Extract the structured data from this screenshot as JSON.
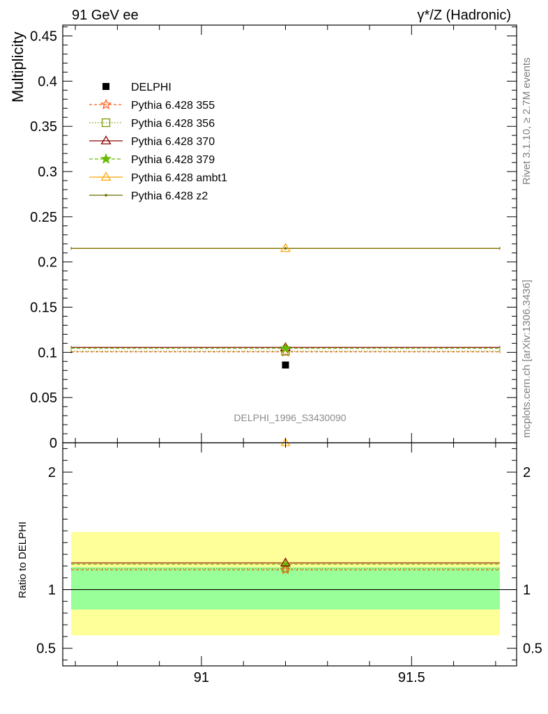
{
  "header": {
    "left_title": "91 GeV ee",
    "right_title": "γ*/Z (Hadronic)"
  },
  "side_labels": {
    "rivet": "Rivet 3.1.10, ≥ 2.7M events",
    "mcplots": "mcplots.cern.ch [arXiv:1306.3436]"
  },
  "chart_data": [
    {
      "type": "scatter",
      "panel": "main",
      "ylabel": "Multiplicity",
      "xlim": [
        90.67,
        91.75
      ],
      "ylim": [
        0,
        0.462
      ],
      "yticks": [
        0,
        0.05,
        0.1,
        0.15,
        0.2,
        0.25,
        0.3,
        0.35,
        0.4,
        0.45
      ],
      "ytick_labels": [
        "0",
        "0.05",
        "0.1",
        "0.15",
        "0.2",
        "0.25",
        "0.3",
        "0.35",
        "0.4",
        "0.45"
      ],
      "annotation": "DELPHI_1996_S3430090",
      "bin": [
        90.69,
        91.71
      ],
      "series": [
        {
          "name": "DELPHI",
          "x": 91.2,
          "y": 0.086,
          "color": "#000000",
          "marker": "square",
          "dash": "none"
        },
        {
          "name": "Pythia 6.428 355",
          "x": 91.2,
          "y": 0.1005,
          "color": "#ff5a14",
          "marker": "star-open",
          "dash": "4,3"
        },
        {
          "name": "Pythia 6.428 356",
          "x": 91.2,
          "y": 0.1013,
          "color": "#7a9a00",
          "marker": "square-open",
          "dash": "1.5,2.5"
        },
        {
          "name": "Pythia 6.428 370",
          "x": 91.2,
          "y": 0.1055,
          "color": "#8b0000",
          "marker": "triangle-open",
          "dash": "none"
        },
        {
          "name": "Pythia 6.428 379",
          "x": 91.2,
          "y": 0.1045,
          "color": "#66bb00",
          "marker": "star",
          "dash": "5,3"
        },
        {
          "name": "Pythia 6.428 ambt1",
          "x": 91.2,
          "y": 0.215,
          "color": "#ffa500",
          "marker": "triangle-open",
          "dash": "none"
        },
        {
          "name": "Pythia 6.428 z2",
          "x": 91.2,
          "y": 0.215,
          "color": "#6b6b00",
          "marker": "dot",
          "dash": "none"
        }
      ]
    },
    {
      "type": "scatter",
      "panel": "ratio",
      "ylabel": "Ratio to DELPHI",
      "xlim": [
        90.67,
        91.75
      ],
      "ylim": [
        0.35,
        2.25
      ],
      "yticks": [
        0.5,
        1,
        2
      ],
      "ytick_labels": [
        "0.5",
        "1",
        "2"
      ],
      "xticks": [
        91,
        91.5
      ],
      "xtick_labels": [
        "91",
        "91.5"
      ],
      "bands": [
        {
          "low": 0.61,
          "high": 1.49,
          "color": "#ffff99"
        },
        {
          "low": 0.83,
          "high": 1.19,
          "color": "#99ff99"
        }
      ],
      "reference": 1.0,
      "series": [
        {
          "name": "Pythia 6.428 355",
          "y": 1.168,
          "color": "#ff5a14",
          "dash": "4,3"
        },
        {
          "name": "Pythia 6.428 356",
          "y": 1.178,
          "color": "#7a9a00",
          "dash": "1.5,2.5"
        },
        {
          "name": "Pythia 6.428 370",
          "y": 1.227,
          "color": "#8b0000",
          "dash": "none"
        },
        {
          "name": "Pythia 6.428 379",
          "y": 1.215,
          "color": "#66bb00",
          "dash": "5,3"
        }
      ]
    }
  ]
}
